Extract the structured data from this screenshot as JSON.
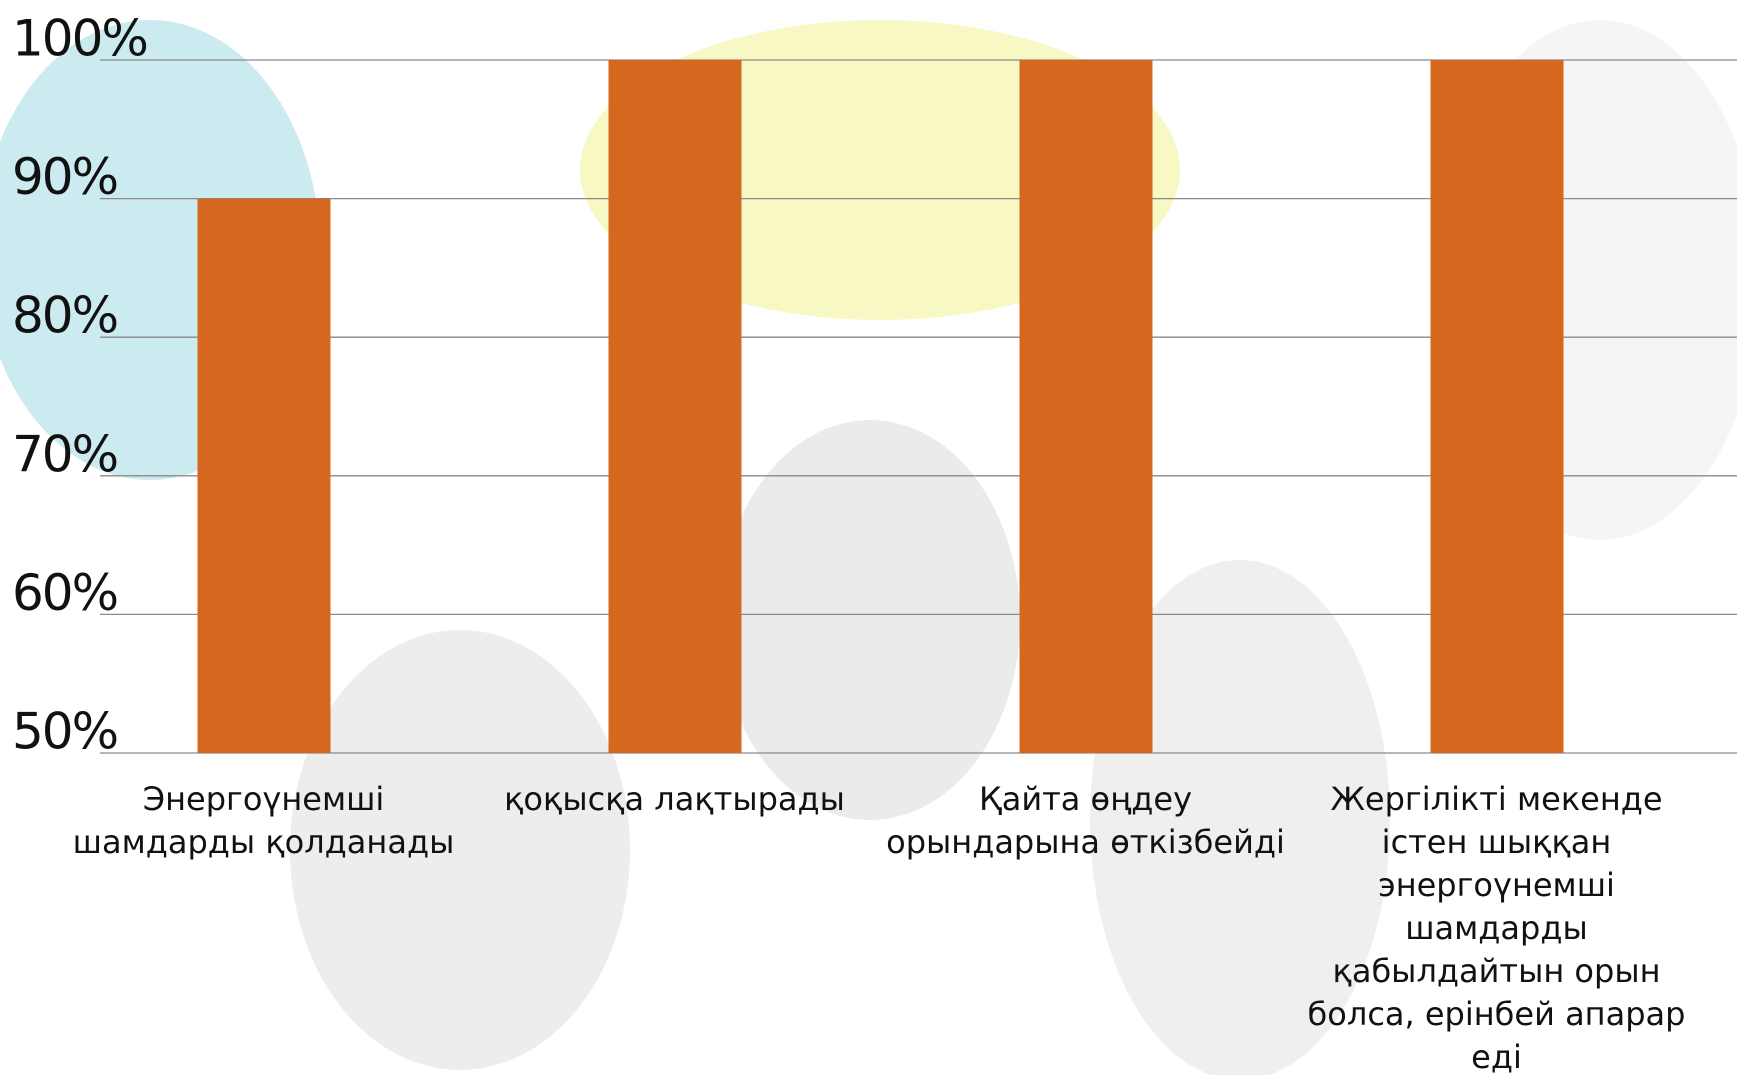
{
  "chart_data": {
    "type": "bar",
    "categories": [
      "Энергоүнемші шамдарды қолданады",
      "қоқысқа лақтырады",
      "Қайта өңдеу орындарына өткізбейді",
      "Жергілікті мекенде істен шыққан энергоүнемші шамдарды қабылдайтын орын болса, ерінбей апарар еді"
    ],
    "values": [
      90,
      100,
      100,
      100
    ],
    "color": "#d5681e",
    "ylim": [
      50,
      100
    ],
    "yticks": [
      {
        "value": 50,
        "label": "50%"
      },
      {
        "value": 60,
        "label": "60%"
      },
      {
        "value": 70,
        "label": "70%"
      },
      {
        "value": 80,
        "label": "80%"
      },
      {
        "value": 90,
        "label": "90%"
      },
      {
        "value": 100,
        "label": "100%"
      }
    ],
    "grid": true
  }
}
